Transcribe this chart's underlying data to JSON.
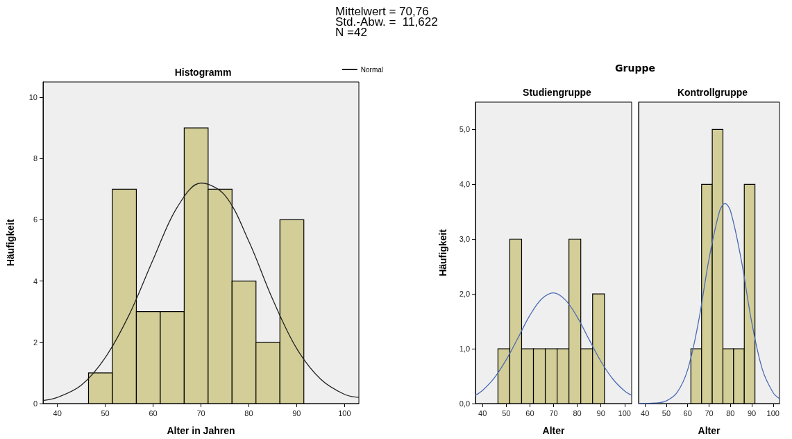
{
  "chart_data": [
    {
      "type": "histogram",
      "title": "Histogramm",
      "xlabel": "Alter in Jahren",
      "ylabel": "Häufigkeit",
      "annotations": [
        "Mittelwert = 70,76",
        "Std.-Abw. =  11,622",
        "N =42"
      ],
      "bins": [
        46.5,
        51.5,
        56.5,
        61.5,
        66.5,
        71.5,
        76.5,
        81.5,
        86.5,
        91.5
      ],
      "values": [
        1,
        7,
        3,
        3,
        9,
        7,
        4,
        2,
        6
      ],
      "color": "#d3ce97",
      "series": [
        {
          "type": "line",
          "name": "Normal",
          "color": "#222222",
          "x": [
            37,
            40,
            45,
            50,
            55,
            60,
            65,
            70,
            75,
            80,
            85,
            90,
            95,
            100,
            103
          ],
          "values": [
            0.1,
            0.2,
            0.6,
            1.5,
            2.9,
            4.7,
            6.4,
            7.2,
            6.8,
            5.3,
            3.4,
            1.8,
            0.8,
            0.3,
            0.2
          ]
        }
      ],
      "legend": "top right",
      "marker": "none",
      "xlim": [
        37,
        103
      ],
      "xticks": [
        40,
        50,
        60,
        70,
        80,
        90,
        100
      ],
      "ylim": [
        0,
        10.5
      ],
      "yticks": [
        0,
        2,
        4,
        6,
        8,
        10
      ]
    },
    {
      "type": "histogram",
      "title": "Studiengruppe",
      "xlabel": "Alter",
      "ylabel": "Häufigkeit",
      "annotations": [
        "Gruppe"
      ],
      "bins": [
        46.5,
        51.5,
        56.5,
        61.5,
        66.5,
        71.5,
        76.5,
        81.5,
        86.5,
        91.5
      ],
      "values": [
        1,
        3,
        1,
        1,
        1,
        1,
        3,
        1,
        2
      ],
      "color": "#d3ce97",
      "series": [
        {
          "type": "line",
          "color": "#4a6bb5",
          "x": [
            37,
            40,
            45,
            50,
            55,
            60,
            65,
            70,
            75,
            80,
            85,
            90,
            95,
            100,
            103
          ],
          "values": [
            0.15,
            0.24,
            0.47,
            0.8,
            1.2,
            1.61,
            1.91,
            2.02,
            1.89,
            1.58,
            1.17,
            0.77,
            0.45,
            0.23,
            0.15
          ]
        }
      ],
      "marker": "none",
      "xlim": [
        37,
        103
      ],
      "xticks": [
        40,
        50,
        60,
        70,
        80,
        90,
        100
      ],
      "ylim": [
        0,
        5.5
      ],
      "yticks": [
        {
          "value": 0,
          "label": "0,0"
        },
        {
          "value": 1,
          "label": "1,0"
        },
        {
          "value": 2,
          "label": "2,0"
        },
        {
          "value": 3,
          "label": "3,0"
        },
        {
          "value": 4,
          "label": "4,0"
        },
        {
          "value": 5,
          "label": "5,0"
        }
      ]
    },
    {
      "type": "histogram",
      "title": "Kontrollgruppe",
      "xlabel": "Alter",
      "bins": [
        61.5,
        66.5,
        71.5,
        76.5,
        81.5,
        86.5,
        91.5
      ],
      "values": [
        1,
        4,
        5,
        1,
        1,
        4
      ],
      "color": "#d3ce97",
      "series": [
        {
          "type": "line",
          "color": "#4a6bb5",
          "x": [
            37,
            45,
            50,
            55,
            60,
            65,
            70,
            75,
            77.5,
            80,
            85,
            90,
            95,
            100,
            103
          ],
          "values": [
            0,
            0.01,
            0.05,
            0.2,
            0.62,
            1.48,
            2.64,
            3.52,
            3.65,
            3.52,
            2.64,
            1.48,
            0.62,
            0.2,
            0.09
          ]
        }
      ],
      "marker": "none",
      "tick_labels": "x",
      "xlim": [
        37,
        103
      ],
      "xticks": [
        40,
        50,
        60,
        70,
        80,
        90,
        100
      ],
      "ylim": [
        0,
        5.5
      ]
    }
  ]
}
